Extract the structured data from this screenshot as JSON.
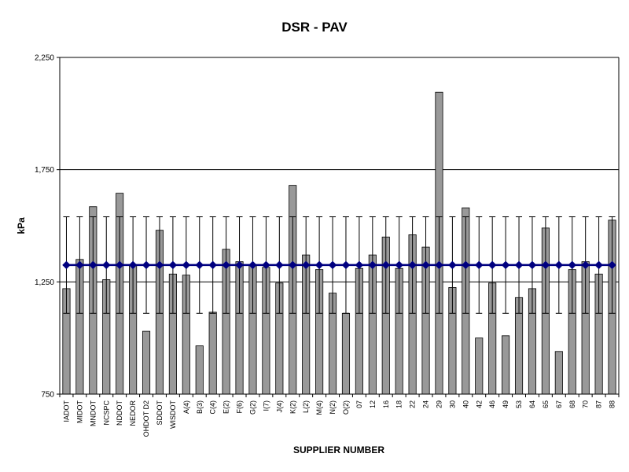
{
  "chart_data": {
    "type": "bar",
    "title": "DSR - PAV",
    "xlabel": "SUPPLIER NUMBER",
    "ylabel": "kPa",
    "ylim": [
      750,
      2250
    ],
    "yticks": [
      750,
      1250,
      1750,
      2250
    ],
    "ytick_labels": [
      "750",
      "1,250",
      "1,750",
      "2,250"
    ],
    "grid": "horizontal major gridlines",
    "legend": "none",
    "categories": [
      "IADOT",
      "MIDOT",
      "MNDOT",
      "NCSPC",
      "NDDOT",
      "NEDOR",
      "OHDOT D2",
      "SDDOT",
      "WISDOT",
      "A(4)",
      "B(3)",
      "C(4)",
      "E(2)",
      "F(6)",
      "G(2)",
      "I(7)",
      "J(4)",
      "K(2)",
      "L(2)",
      "M(4)",
      "N(2)",
      "O(2)",
      "07",
      "12",
      "16",
      "18",
      "22",
      "24",
      "29",
      "30",
      "40",
      "42",
      "46",
      "49",
      "53",
      "64",
      "65",
      "67",
      "68",
      "70",
      "87",
      "88"
    ],
    "series": [
      {
        "type": "bar",
        "values": [
          1220,
          1350,
          1585,
          1260,
          1645,
          1325,
          1030,
          1480,
          1285,
          1280,
          965,
          1115,
          1395,
          1340,
          1325,
          1315,
          1245,
          1680,
          1370,
          1305,
          1200,
          1110,
          1310,
          1370,
          1450,
          1310,
          1460,
          1405,
          2095,
          1225,
          1580,
          1000,
          1245,
          1010,
          1180,
          1220,
          1490,
          940,
          1305,
          1340,
          1285,
          1525
        ]
      },
      {
        "type": "line",
        "values": [
          1325,
          1325,
          1325,
          1325,
          1325,
          1325,
          1325,
          1325,
          1325,
          1325,
          1325,
          1325,
          1325,
          1325,
          1325,
          1325,
          1325,
          1325,
          1325,
          1325,
          1325,
          1325,
          1325,
          1325,
          1325,
          1325,
          1325,
          1325,
          1325,
          1325,
          1325,
          1325,
          1325,
          1325,
          1325,
          1325,
          1325,
          1325,
          1325,
          1325,
          1325,
          1325
        ],
        "error_bar": [
          1110,
          1540
        ]
      }
    ],
    "colors": {
      "bar_fill": "#999999",
      "bar_stroke": "#000000",
      "line": "#000080",
      "grid": "#000000",
      "error_bar": "#000000"
    }
  }
}
